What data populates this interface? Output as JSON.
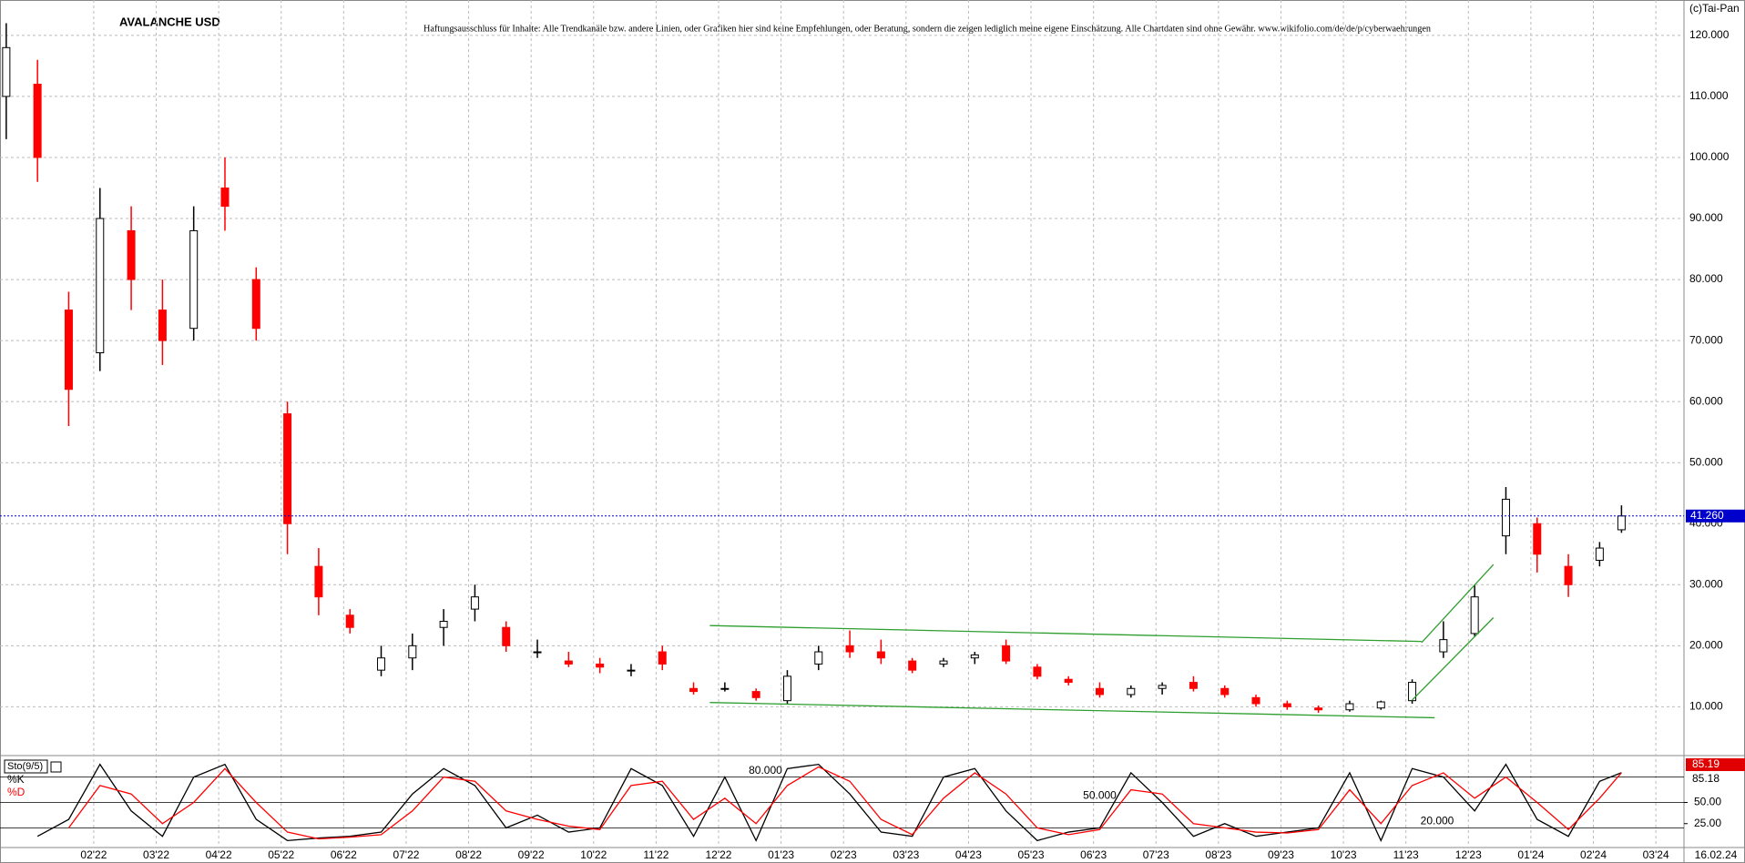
{
  "chart_data": [
    {
      "type": "candlestick",
      "title": "AVALANCHE USD",
      "subtitle": "Haftungsausschluss für Inhalte: Alle Trendkanäle bzw. andere Linien, oder Grafiken hier sind keine Empfehlungen, oder Beratung, sondern die zeigen lediglich meine eigene Einschätzung. Alle Chartdaten sind ohne Gewähr.  www.wikifolio.com/de/de/p/cyberwaehrungen",
      "copyright": "(c)Tai-Pan",
      "date_label": "16.02.24",
      "x": [
        -0.4,
        0.1,
        0.6,
        1.1,
        1.6,
        2.1,
        2.6,
        3.1,
        3.6,
        4.1,
        4.6,
        5.1,
        5.6,
        6.1,
        6.6,
        7.1,
        7.6,
        8.1,
        8.6,
        9.1,
        9.6,
        10.1,
        10.6,
        11.1,
        11.6,
        12.1,
        12.6,
        13.1,
        13.6,
        14.1,
        14.6,
        15.1,
        15.6,
        16.1,
        16.6,
        17.1,
        17.6,
        18.1,
        18.6,
        19.1,
        19.6,
        20.1,
        20.6,
        21.1,
        21.6,
        22.1,
        22.6,
        23.1,
        23.6,
        24.1,
        24.6,
        25.1,
        25.45
      ],
      "open": [
        110,
        112,
        75,
        68,
        88,
        75,
        72,
        95,
        80,
        58,
        33,
        25,
        16,
        18,
        23,
        26,
        23,
        19,
        17.5,
        17,
        16,
        19,
        13,
        13,
        12.5,
        11,
        17,
        20,
        19,
        17.5,
        17,
        18,
        20,
        16.5,
        14.5,
        13,
        12,
        13,
        14,
        13,
        11.5,
        10.5,
        9.8,
        9.5,
        9.8,
        11,
        19,
        22,
        38,
        40,
        33,
        34,
        39
      ],
      "high": [
        122,
        116,
        78,
        95,
        92,
        80,
        92,
        100,
        82,
        60,
        36,
        26,
        20,
        22,
        26,
        30,
        24,
        21,
        19,
        18,
        17,
        20,
        14,
        14,
        13,
        16,
        20,
        22.5,
        21,
        18,
        18,
        19,
        21,
        17,
        15,
        14,
        13.5,
        14,
        15,
        13.5,
        12,
        11,
        10.2,
        11,
        11,
        14.5,
        24,
        30,
        46,
        41,
        35,
        37,
        43
      ],
      "low": [
        103,
        96,
        56,
        65,
        75,
        66,
        70,
        88,
        70,
        35,
        25,
        22,
        15,
        16,
        20,
        24,
        19,
        18,
        16.5,
        15.5,
        15,
        16,
        12,
        12.5,
        11,
        10.5,
        16,
        18,
        17,
        15.5,
        16.5,
        17,
        17,
        14.5,
        13.5,
        11.5,
        11.5,
        12,
        12.5,
        11.5,
        10,
        9.5,
        9,
        9.2,
        9.5,
        10.5,
        18,
        21.5,
        35,
        32,
        28,
        33,
        38.5
      ],
      "close": [
        118,
        100,
        62,
        90,
        80,
        70,
        88,
        92,
        72,
        40,
        28,
        23,
        18,
        20,
        24,
        28,
        20,
        19,
        17,
        16.5,
        16,
        17,
        12.5,
        13,
        11.5,
        15,
        19,
        19,
        18,
        16,
        17.5,
        18.5,
        17.5,
        15,
        14,
        12,
        13,
        13.5,
        13,
        12,
        10.5,
        10,
        9.5,
        10.5,
        10.8,
        14,
        21,
        28,
        44,
        35,
        30,
        36,
        41.26
      ],
      "up_color": "#000000",
      "down_color": "#ff0000",
      "xlim": [
        -0.5,
        26.45
      ],
      "xticks": [
        {
          "value": 1,
          "label": "02'22"
        },
        {
          "value": 2,
          "label": "03'22"
        },
        {
          "value": 3,
          "label": "04'22"
        },
        {
          "value": 4,
          "label": "05'22"
        },
        {
          "value": 5,
          "label": "06'22"
        },
        {
          "value": 6,
          "label": "07'22"
        },
        {
          "value": 7,
          "label": "08'22"
        },
        {
          "value": 8,
          "label": "09'22"
        },
        {
          "value": 9,
          "label": "10'22"
        },
        {
          "value": 10,
          "label": "11'22"
        },
        {
          "value": 11,
          "label": "12'22"
        },
        {
          "value": 12,
          "label": "01'23"
        },
        {
          "value": 13,
          "label": "02'23"
        },
        {
          "value": 14,
          "label": "03'23"
        },
        {
          "value": 15,
          "label": "04'23"
        },
        {
          "value": 16,
          "label": "05'23"
        },
        {
          "value": 17,
          "label": "06'23"
        },
        {
          "value": 18,
          "label": "07'23"
        },
        {
          "value": 19,
          "label": "08'23"
        },
        {
          "value": 20,
          "label": "09'23"
        },
        {
          "value": 21,
          "label": "10'23"
        },
        {
          "value": 22,
          "label": "11'23"
        },
        {
          "value": 23,
          "label": "12'23"
        },
        {
          "value": 24,
          "label": "01'24"
        },
        {
          "value": 25,
          "label": "02'24"
        },
        {
          "value": 26,
          "label": "03'24"
        }
      ],
      "ylim": [
        2.3,
        125.8
      ],
      "yticks": [
        {
          "value": 10,
          "label": "10.000"
        },
        {
          "value": 20,
          "label": "20.000"
        },
        {
          "value": 30,
          "label": "30.000"
        },
        {
          "value": 40,
          "label": "40.000"
        },
        {
          "value": 50,
          "label": "50.000"
        },
        {
          "value": 60,
          "label": "60.000"
        },
        {
          "value": 70,
          "label": "70.000"
        },
        {
          "value": 80,
          "label": "80.000"
        },
        {
          "value": 90,
          "label": "90.000"
        },
        {
          "value": 100,
          "label": "100.000"
        },
        {
          "value": 110,
          "label": "110.000"
        },
        {
          "value": 120,
          "label": "120.000"
        }
      ],
      "grid": true,
      "reference_line": {
        "value": 41.26,
        "label": "41.260",
        "color": "#0000cc"
      },
      "trendline_color": "#2e9e2e",
      "trendlines": [
        {
          "x": [
            10.86,
            22.25
          ],
          "y": [
            23.3,
            20.7
          ]
        },
        {
          "x": [
            10.86,
            22.46
          ],
          "y": [
            10.7,
            8.2
          ]
        },
        {
          "x": [
            22.25,
            23.4
          ],
          "y": [
            20.5,
            33.3
          ]
        },
        {
          "x": [
            22.1,
            23.4
          ],
          "y": [
            11.1,
            24.6
          ]
        }
      ]
    },
    {
      "type": "line",
      "title": "Sto(9/5)",
      "series": [
        {
          "name": "%K",
          "color": "#000000",
          "values": [
            null,
            10,
            30,
            95,
            40,
            10,
            80,
            95,
            30,
            5,
            8,
            10,
            15,
            60,
            90,
            70,
            20,
            35,
            15,
            20,
            90,
            70,
            10,
            80,
            5,
            90,
            95,
            60,
            15,
            10,
            80,
            90,
            40,
            5,
            15,
            20,
            85,
            50,
            10,
            25,
            10,
            15,
            20,
            85,
            5,
            90,
            80,
            40,
            95,
            30,
            10,
            75,
            85.19
          ]
        },
        {
          "name": "%D",
          "color": "#ff0000",
          "values": [
            null,
            null,
            20,
            70,
            60,
            25,
            50,
            90,
            50,
            15,
            7,
            9,
            12,
            40,
            80,
            75,
            40,
            30,
            22,
            18,
            70,
            75,
            30,
            55,
            25,
            70,
            92,
            75,
            30,
            12,
            55,
            85,
            60,
            20,
            12,
            18,
            65,
            60,
            25,
            20,
            15,
            14,
            18,
            65,
            25,
            70,
            85,
            55,
            80,
            50,
            18,
            55,
            85.18
          ]
        }
      ],
      "ylim": [
        0,
        100
      ],
      "yticks": [
        {
          "value": 50,
          "label": "50.00"
        },
        {
          "value": 25,
          "label": "25.00"
        }
      ],
      "levels": [
        {
          "value": 80,
          "label": "80.000"
        },
        {
          "value": 50,
          "label": "50.000"
        },
        {
          "value": 20,
          "label": "20.000"
        }
      ]
    }
  ]
}
